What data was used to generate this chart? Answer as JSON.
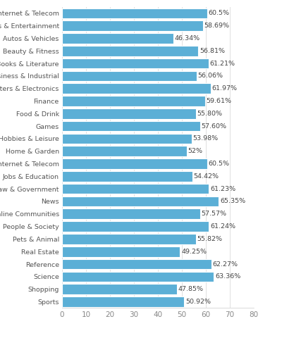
{
  "categories": [
    "Internet & Telecom",
    "Arts & Entertainment",
    "Autos & Vehicles",
    "Beauty & Fitness",
    "Books & Literature",
    "Business & Industrial",
    "Computers & Electronics",
    "Finance",
    "Food & Drink",
    "Games",
    "Hobbies & Leisure",
    "Home & Garden",
    "Internet & Telecom",
    "Jobs & Education",
    "Law & Government",
    "News",
    "Online Communities",
    "People & Society",
    "Pets & Animal",
    "Real Estate",
    "Reference",
    "Science",
    "Shopping",
    "Sports"
  ],
  "values": [
    60.5,
    58.69,
    46.34,
    56.81,
    61.21,
    56.06,
    61.97,
    59.61,
    55.8,
    57.6,
    53.98,
    52.0,
    60.5,
    54.42,
    61.23,
    65.35,
    57.57,
    61.24,
    55.82,
    49.25,
    62.27,
    63.36,
    47.85,
    50.92
  ],
  "labels": [
    "60.5%",
    "58.69%",
    "46.34%",
    "56.81%",
    "61.21%",
    "56.06%",
    "61.97%",
    "59.61%",
    "55.80%",
    "57.60%",
    "53.98%",
    "52%",
    "60.5%",
    "54.42%",
    "61.23%",
    "65.35%",
    "57.57%",
    "61.24%",
    "55.82%",
    "49.25%",
    "62.27%",
    "63.36%",
    "47.85%",
    "50.92%"
  ],
  "bar_color": "#5BAFD6",
  "background_color": "#ffffff",
  "xlim": [
    0,
    80
  ],
  "xticks": [
    0,
    10,
    20,
    30,
    40,
    50,
    60,
    70,
    80
  ],
  "bar_height": 0.82,
  "label_fontsize": 6.8,
  "tick_fontsize": 7.5,
  "value_fontsize": 6.8
}
